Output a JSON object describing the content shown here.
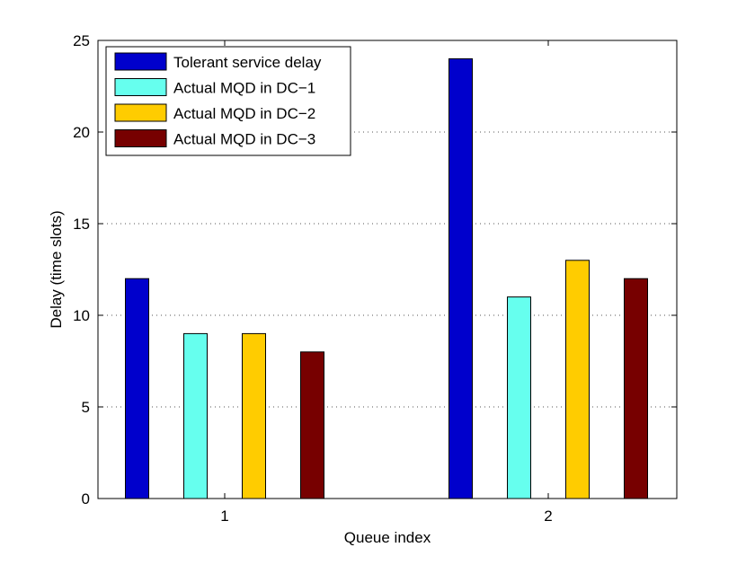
{
  "chart_data": {
    "type": "bar",
    "title": "",
    "xlabel": "Queue index",
    "ylabel": "Delay (time slots)",
    "categories": [
      "1",
      "2"
    ],
    "ylim": [
      0,
      25
    ],
    "yticks": [
      "0",
      "5",
      "10",
      "15",
      "20",
      "25"
    ],
    "grid": "horizontal dotted",
    "legend_position": "top-left",
    "series": [
      {
        "name": "Tolerant service delay",
        "color": "#0000cc",
        "values": [
          12,
          24
        ]
      },
      {
        "name": "Actual MQD in DC−1",
        "color": "#66ffee",
        "values": [
          9,
          11
        ]
      },
      {
        "name": "Actual MQD in DC−2",
        "color": "#ffcc00",
        "values": [
          9,
          13
        ]
      },
      {
        "name": "Actual MQD in DC−3",
        "color": "#770000",
        "values": [
          8,
          12
        ]
      }
    ]
  }
}
